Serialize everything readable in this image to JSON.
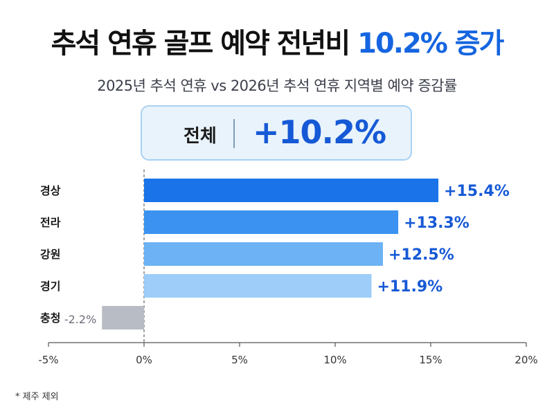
{
  "header": {
    "title_main": "추석 연휴 골프 예약 전년비",
    "title_highlight": "10.2% 증가",
    "subtitle": "2025년 추석 연휴 vs 2026년 추석 연휴 지역별 예약 증감률"
  },
  "total": {
    "label": "전체",
    "value": "+10.2%"
  },
  "footnote": "* 제주 제외",
  "colors": {
    "bar_dark": "#1a73e8",
    "bar_mid": "#3b92f0",
    "bar_light": "#6cb2f5",
    "bar_lighter": "#9dcdf8",
    "bar_negative": "#b8bcc4",
    "label_blue": "#1659d6",
    "label_gray": "#6b6f78",
    "axis": "#555555"
  },
  "chart_data": {
    "type": "bar",
    "orientation": "horizontal",
    "categories": [
      "경상",
      "전라",
      "강원",
      "경기",
      "충청"
    ],
    "values": [
      15.4,
      13.3,
      12.5,
      11.9,
      -2.2
    ],
    "data_labels": [
      "+15.4%",
      "+13.3%",
      "+12.5%",
      "+11.9%",
      "-2.2%"
    ],
    "xlim": [
      -5,
      20
    ],
    "xticks": [
      -5,
      0,
      5,
      10,
      15,
      20
    ],
    "xtick_labels": [
      "-5%",
      "0%",
      "5%",
      "10%",
      "15%",
      "20%"
    ],
    "zero_line": "dashed",
    "grid": false
  }
}
